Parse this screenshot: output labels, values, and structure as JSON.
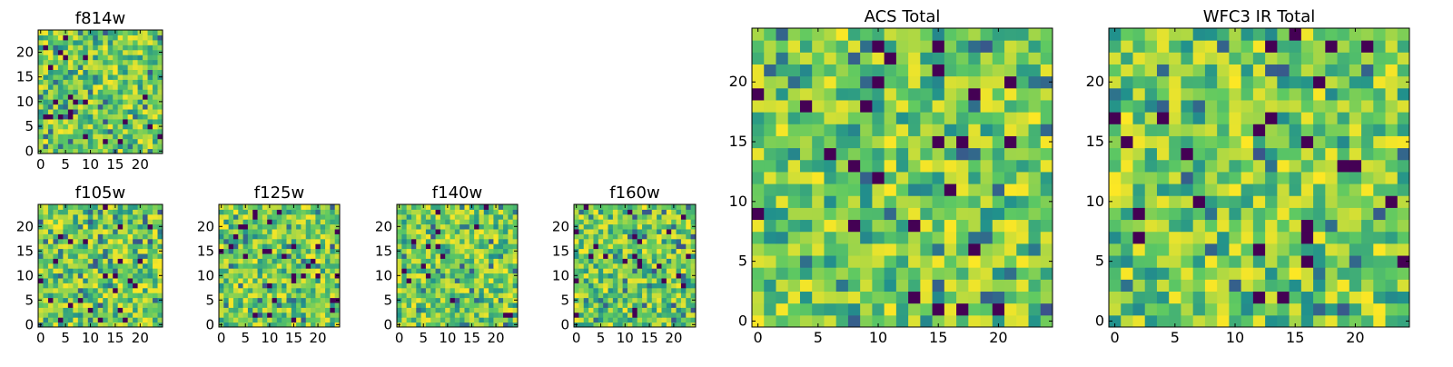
{
  "chart_data": {
    "type": "heatmap",
    "colormap": [
      "#440154",
      "#3b528b",
      "#21918c",
      "#5ec962",
      "#fde725"
    ],
    "grid": false,
    "panels": [
      {
        "title": "f814w",
        "size": 25,
        "ticks": [
          0,
          5,
          10,
          15,
          20
        ],
        "seed": 11
      },
      {
        "title": "f105w",
        "size": 25,
        "ticks": [
          0,
          5,
          10,
          15,
          20
        ],
        "seed": 23
      },
      {
        "title": "f125w",
        "size": 25,
        "ticks": [
          0,
          5,
          10,
          15,
          20
        ],
        "seed": 37
      },
      {
        "title": "f140w",
        "size": 25,
        "ticks": [
          0,
          5,
          10,
          15,
          20
        ],
        "seed": 41
      },
      {
        "title": "f160w",
        "size": 25,
        "ticks": [
          0,
          5,
          10,
          15,
          20
        ],
        "seed": 53
      },
      {
        "title": "ACS Total",
        "size": 25,
        "ticks": [
          0,
          5,
          10,
          15,
          20
        ],
        "seed": 67
      },
      {
        "title": "WFC3 IR Total",
        "size": 25,
        "ticks": [
          0,
          5,
          10,
          15,
          20
        ],
        "seed": 79
      }
    ]
  }
}
